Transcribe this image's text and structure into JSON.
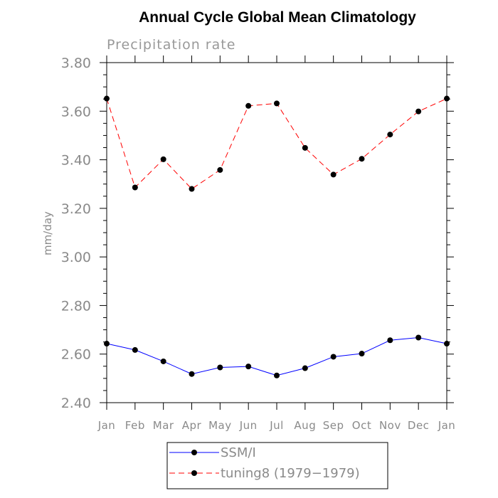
{
  "chart_data": {
    "type": "line",
    "title": "Annual Cycle Global Mean Climatology",
    "subtitle": "Precipitation rate",
    "xlabel": "",
    "ylabel": "mm/day",
    "categories": [
      "Jan",
      "Feb",
      "Mar",
      "Apr",
      "May",
      "Jun",
      "Jul",
      "Aug",
      "Sep",
      "Oct",
      "Nov",
      "Dec",
      "Jan"
    ],
    "yticks": [
      "3.80",
      "3.60",
      "3.40",
      "3.20",
      "3.00",
      "2.80",
      "2.60",
      "2.40"
    ],
    "ylim": [
      2.4,
      3.8
    ],
    "grid": false,
    "legend_position": "bottom",
    "series": [
      {
        "name": "SSM/I",
        "color": "#0000ff",
        "dash": "solid",
        "values": [
          2.643,
          2.617,
          2.57,
          2.518,
          2.545,
          2.549,
          2.512,
          2.542,
          2.589,
          2.602,
          2.657,
          2.668,
          2.643
        ]
      },
      {
        "name": "tuning8 (1979−1979)",
        "color": "#ff0000",
        "dash": "dashed",
        "values": [
          3.652,
          3.286,
          3.402,
          3.28,
          3.358,
          3.622,
          3.632,
          3.449,
          3.339,
          3.404,
          3.504,
          3.599,
          3.652
        ]
      }
    ]
  }
}
